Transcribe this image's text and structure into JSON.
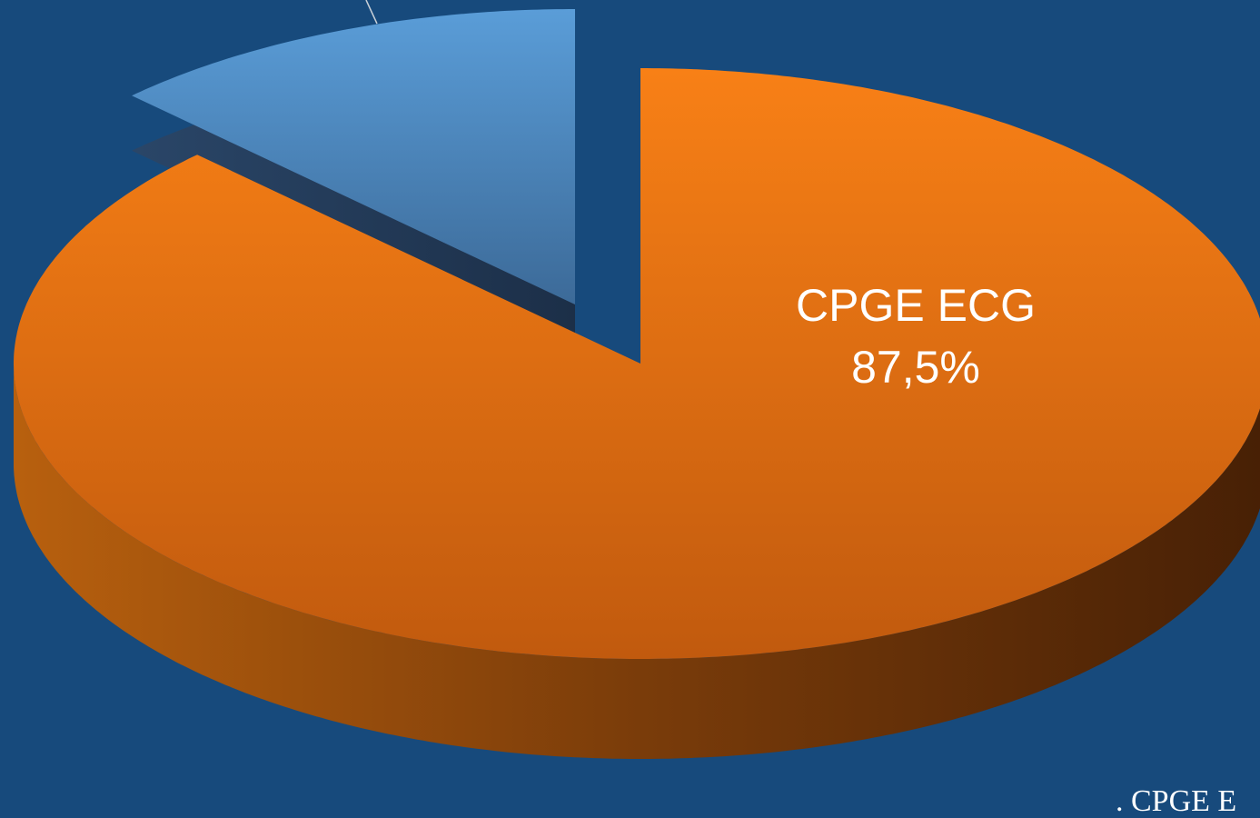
{
  "chart_data": {
    "type": "pie",
    "categories": [
      "CPGE ECG",
      null
    ],
    "values": [
      87.5,
      12.5
    ],
    "value_labels": [
      "87,5%",
      null
    ],
    "colors": [
      "#f07a14",
      "#4f8fc8"
    ],
    "annotation": ". CPGE E"
  }
}
